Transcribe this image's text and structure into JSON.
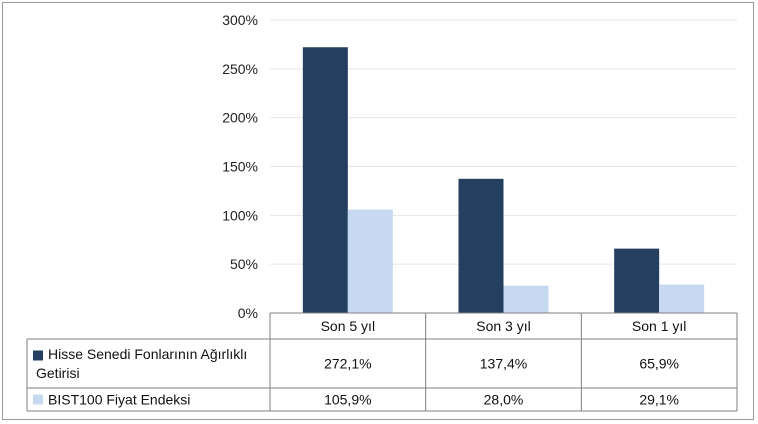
{
  "chart_data": {
    "type": "bar",
    "categories": [
      "Son 5 yıl",
      "Son 3 yıl",
      "Son 1 yıl"
    ],
    "series": [
      {
        "name": "Hisse Senedi Fonlarının Ağırlıklı Getirisi",
        "name_lines": [
          "Hisse Senedi Fonlarının Ağırlıklı",
          "Getirisi"
        ],
        "values": [
          272.1,
          137.4,
          65.9
        ],
        "value_labels": [
          "272,1%",
          "137,4%",
          "65,9%"
        ],
        "color": "#243f60"
      },
      {
        "name": "BIST100 Fiyat Endeksi",
        "name_lines": [
          "BIST100 Fiyat Endeksi"
        ],
        "values": [
          105.9,
          28.0,
          29.1
        ],
        "value_labels": [
          "105,9%",
          "28,0%",
          "29,1%"
        ],
        "color": "#c6d9f1"
      }
    ],
    "ylim": [
      0,
      300
    ],
    "y_ticks": [
      0,
      50,
      100,
      150,
      200,
      250,
      300
    ],
    "y_tick_labels": [
      "0%",
      "50%",
      "100%",
      "150%",
      "200%",
      "250%",
      "300%"
    ],
    "grid": true,
    "legend": "data-table"
  }
}
